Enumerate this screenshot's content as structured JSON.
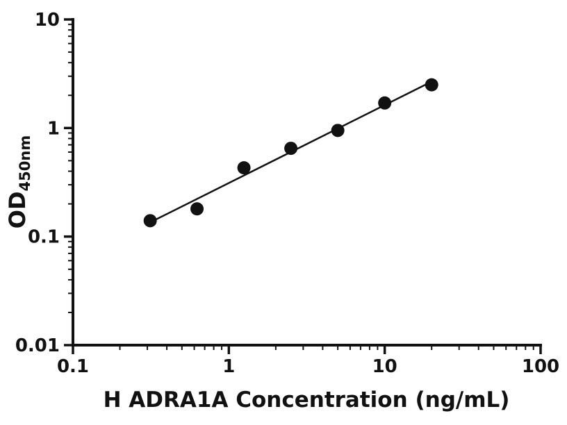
{
  "chart_data": {
    "type": "scatter",
    "title": "",
    "xlabel": "H ADRA1A Concentration (ng/mL)",
    "ylabel_main": "OD",
    "ylabel_sub": "450nm",
    "xscale": "log",
    "yscale": "log",
    "xlim": [
      0.1,
      100
    ],
    "ylim": [
      0.01,
      10
    ],
    "x_tick_values": [
      0.1,
      1,
      10,
      100
    ],
    "x_tick_labels": [
      "0.1",
      "1",
      "10",
      "100"
    ],
    "y_tick_values": [
      0.01,
      0.1,
      1,
      10
    ],
    "y_tick_labels": [
      "0.01",
      "0.1",
      "1",
      "10"
    ],
    "minor_ticks": true,
    "grid": false,
    "x": [
      0.313,
      0.625,
      1.25,
      2.5,
      5,
      10,
      20
    ],
    "y": [
      0.14,
      0.18,
      0.43,
      0.65,
      0.95,
      1.7,
      2.5
    ],
    "trendline": {
      "type": "power-fit-log-log",
      "x_start": 0.313,
      "x_end": 20
    },
    "marker": {
      "shape": "circle",
      "radius_px": 9.5,
      "color": "#111111"
    },
    "line_color": "#111111",
    "axis_color": "#111111",
    "background": "#ffffff"
  }
}
